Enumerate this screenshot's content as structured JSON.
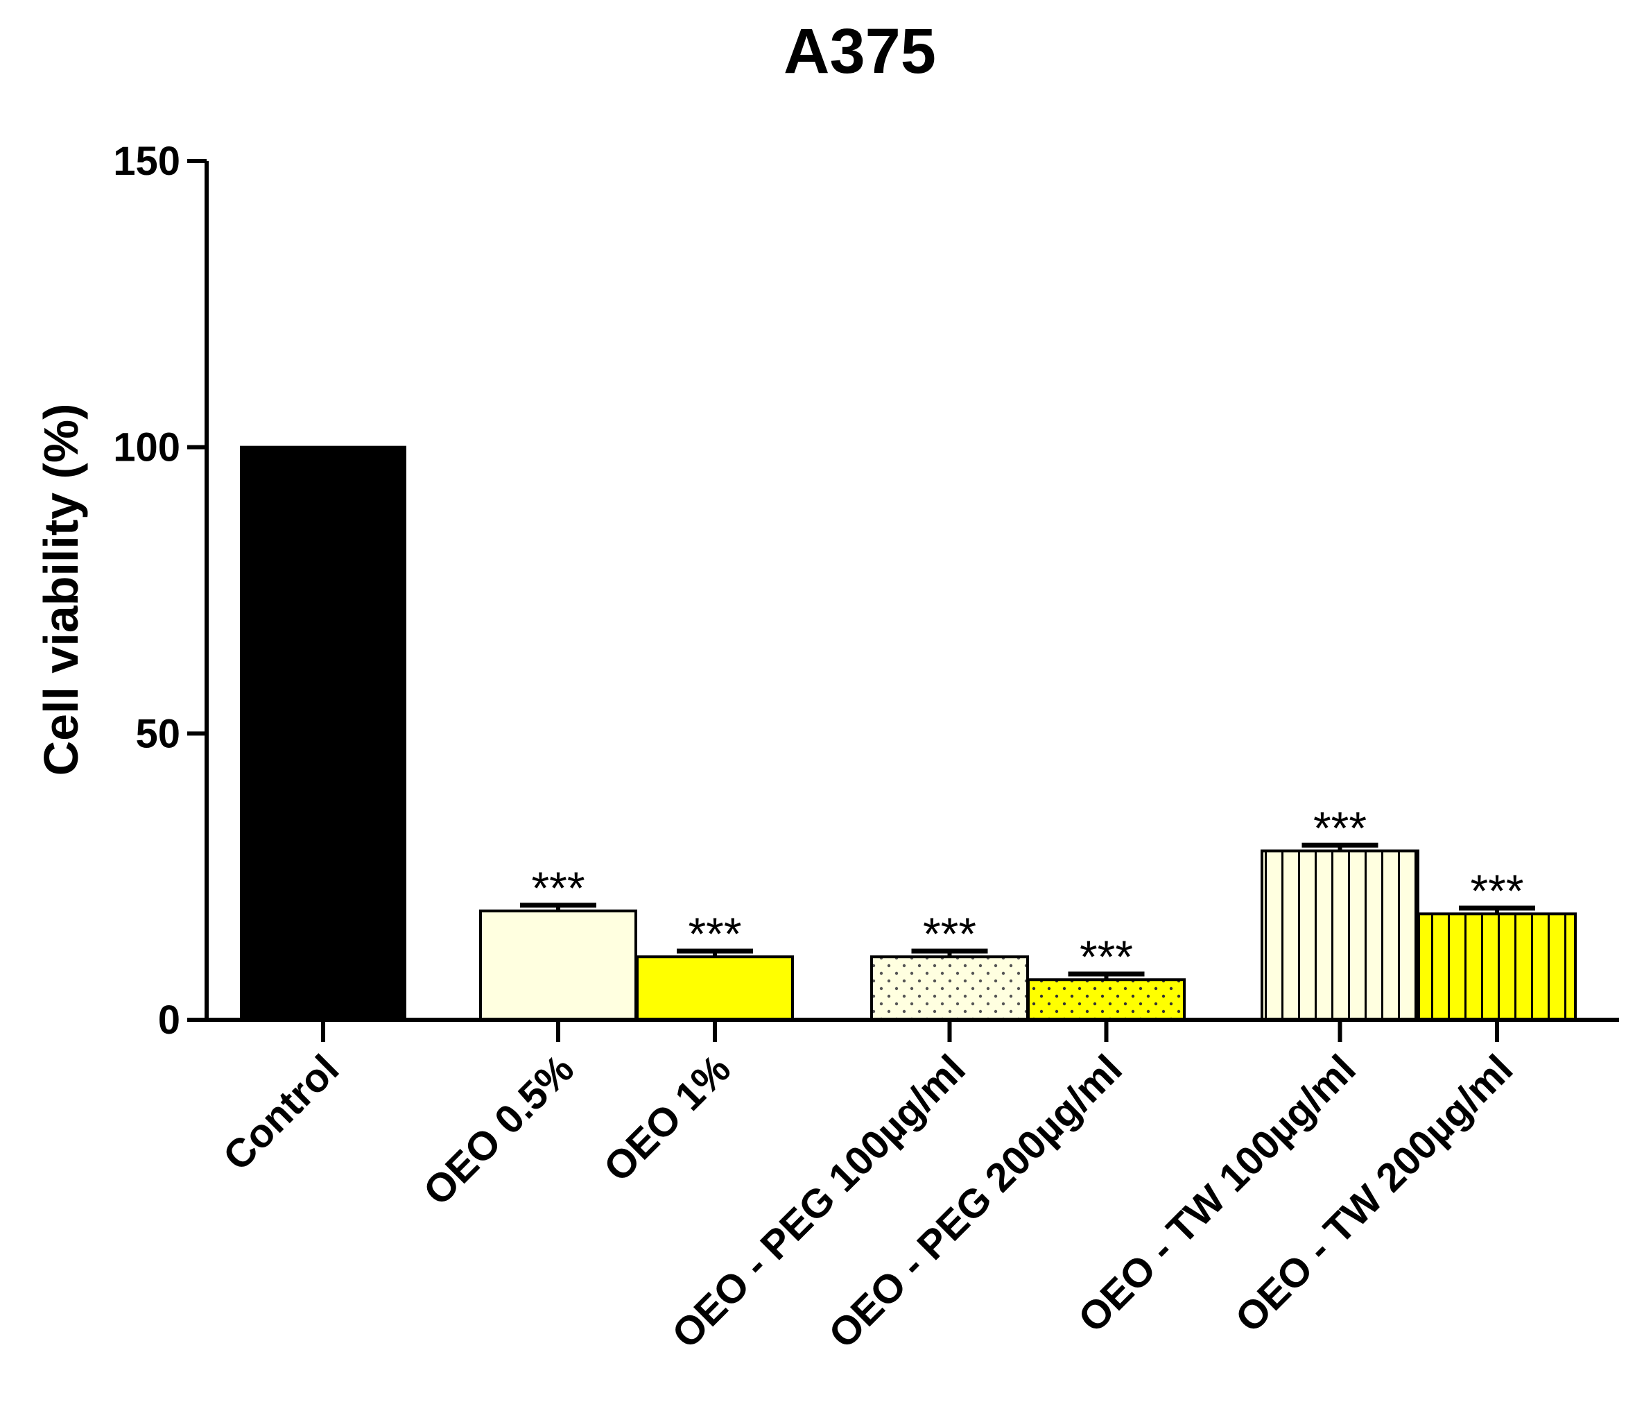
{
  "chart_data": {
    "type": "bar",
    "title": "A375",
    "xlabel": "",
    "ylabel": "Cell viability (%)",
    "ylim": [
      0,
      150
    ],
    "yticks": [
      0,
      50,
      100,
      150
    ],
    "categories": [
      "Control",
      "OEO 0.5%",
      "OEO 1%",
      "OEO - PEG 100µg/ml",
      "OEO - PEG 200µg/ml",
      "OEO - TW 100µg/ml",
      "OEO - TW 200µg/ml"
    ],
    "values": [
      100,
      19,
      11,
      11,
      7,
      29.5,
      18.5
    ],
    "errors": [
      0,
      1,
      1,
      1,
      1,
      1,
      1
    ],
    "significance": [
      "",
      "***",
      "***",
      "***",
      "***",
      "***",
      "***"
    ],
    "fills": [
      "#000000",
      "#ffffe0",
      "#ffff00",
      "#ffffe0",
      "#ffff00",
      "#ffffe0",
      "#ffff00"
    ],
    "patterns": [
      "solid",
      "solid",
      "solid",
      "dots",
      "dots",
      "vlines",
      "vlines"
    ],
    "grid": false,
    "legend": "none"
  }
}
